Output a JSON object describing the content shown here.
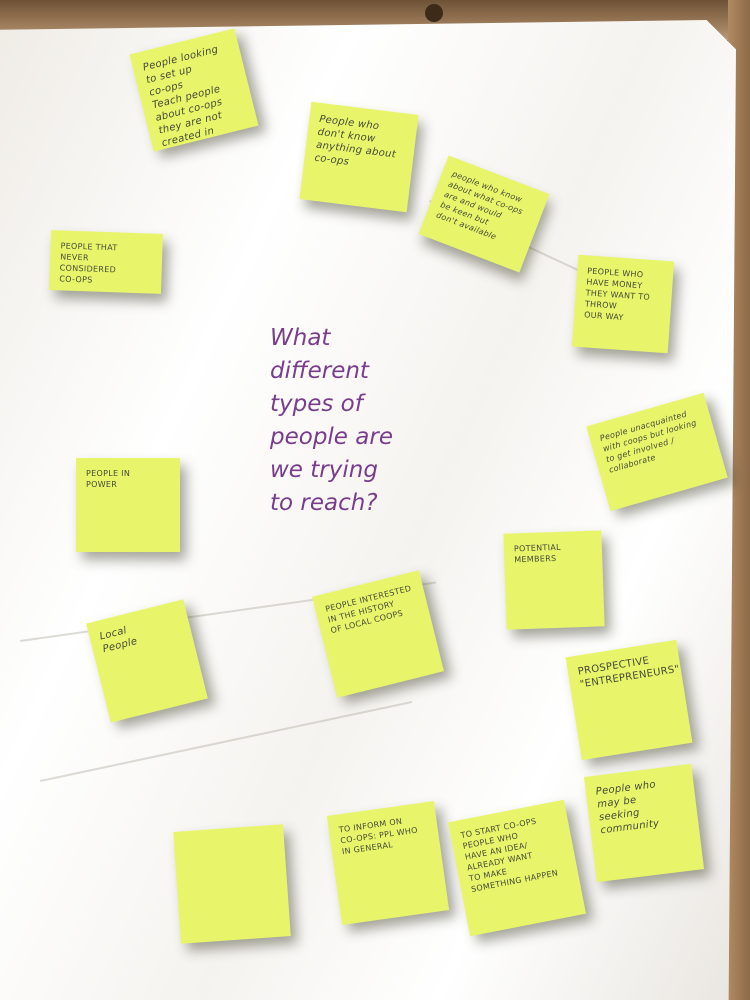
{
  "question": "What\ndifferent\ntypes of\npeople are\nwe trying\nto reach?",
  "colors": {
    "note": "#e8f56a",
    "ink_question": "#7a3c8c",
    "paper": "#f7f5f1"
  },
  "notes": [
    {
      "text": "People looking\nto set up\nco-ops\nTeach people\nabout co-ops\nthey are not\ncreated in"
    },
    {
      "text": "People who\ndon't know\nanything about\nco-ops"
    },
    {
      "text": "people who know\nabout what co-ops\nare and would\nbe keen but\ndon't available"
    },
    {
      "text": "PEOPLE THAT\nNEVER\nCONSIDERED\nCO-OPS"
    },
    {
      "text": "PEOPLE WHO\nHAVE MONEY\nTHEY WANT TO THROW\nOUR WAY"
    },
    {
      "text": "People unacquainted\nwith coops but looking\nto get involved / collaborate"
    },
    {
      "text": "PEOPLE IN\nPOWER"
    },
    {
      "text": "POTENTIAL\nMEMBERS"
    },
    {
      "text": "Local\nPeople"
    },
    {
      "text": "PEOPLE INTERESTED\nIN THE HISTORY\nOF LOCAL COOPS"
    },
    {
      "text": "PROSPECTIVE\n\"ENTREPRENEURS\""
    },
    {
      "text": ""
    },
    {
      "text": "TO INFORM ON\nCO-OPS: PPL WHO\nIN GENERAL"
    },
    {
      "text": "TO START CO-OPS\nPEOPLE WHO\nHAVE AN IDEA/\nALREADY WANT\nTO MAKE\nSOMETHING HAPPEN"
    },
    {
      "text": "People who\nmay be\nseeking\ncommunity"
    }
  ]
}
